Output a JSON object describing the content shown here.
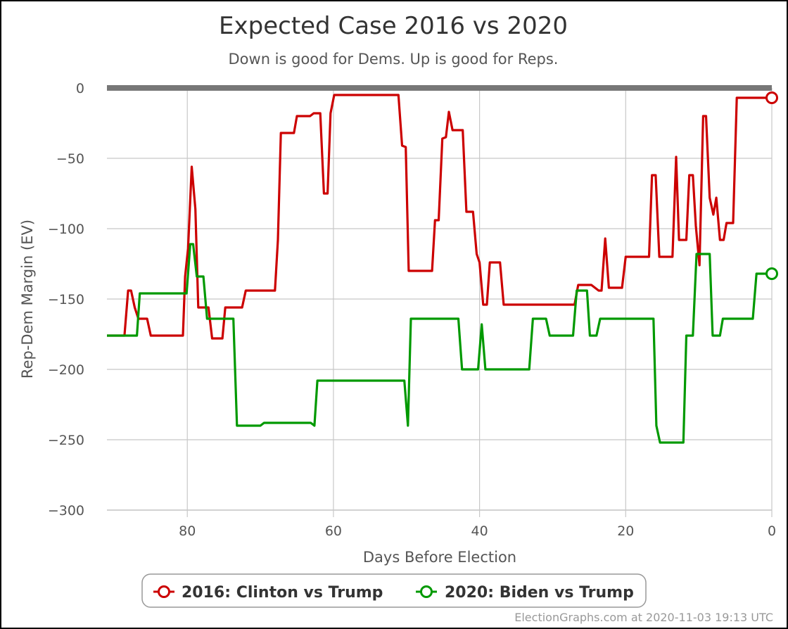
{
  "chart_data": {
    "type": "line",
    "title": "Expected Case 2016 vs 2020",
    "subtitle": "Down is good for Dems. Up is good for Reps.",
    "xlabel": "Days Before Election",
    "ylabel": "Rep-Dem Margin (EV)",
    "xlim": [
      91,
      0
    ],
    "ylim": [
      -300,
      0
    ],
    "x_reversed": true,
    "x_ticks": [
      "80",
      "60",
      "40",
      "20",
      "0"
    ],
    "y_ticks": [
      "0",
      "−50",
      "−100",
      "−150",
      "−200",
      "−250",
      "−300"
    ],
    "grid": true,
    "legend_position": "bottom",
    "credit": "ElectionGraphs.com at 2020-11-03 19:13 UTC",
    "series": [
      {
        "name": "2016: Clinton vs Trump",
        "color": "#cc0000",
        "points": [
          [
            91,
            -176
          ],
          [
            88.6,
            -176
          ],
          [
            88.1,
            -144
          ],
          [
            87.7,
            -144
          ],
          [
            87.2,
            -156
          ],
          [
            86.7,
            -164
          ],
          [
            85.5,
            -164
          ],
          [
            85.0,
            -176
          ],
          [
            80.6,
            -176
          ],
          [
            80.3,
            -134
          ],
          [
            79.9,
            -114
          ],
          [
            79.4,
            -56
          ],
          [
            78.9,
            -86
          ],
          [
            78.5,
            -156
          ],
          [
            77.1,
            -156
          ],
          [
            76.6,
            -178
          ],
          [
            75.2,
            -178
          ],
          [
            74.8,
            -156
          ],
          [
            72.5,
            -156
          ],
          [
            72.0,
            -144
          ],
          [
            68.0,
            -144
          ],
          [
            67.6,
            -108
          ],
          [
            67.2,
            -32
          ],
          [
            65.4,
            -32
          ],
          [
            65.0,
            -20
          ],
          [
            63.2,
            -20
          ],
          [
            62.7,
            -18
          ],
          [
            61.8,
            -18
          ],
          [
            61.3,
            -75
          ],
          [
            60.8,
            -75
          ],
          [
            60.4,
            -18
          ],
          [
            59.9,
            -5
          ],
          [
            51.1,
            -5
          ],
          [
            50.6,
            -41
          ],
          [
            50.1,
            -42
          ],
          [
            49.7,
            -130
          ],
          [
            46.5,
            -130
          ],
          [
            46.1,
            -94
          ],
          [
            45.6,
            -94
          ],
          [
            45.1,
            -36
          ],
          [
            44.6,
            -35
          ],
          [
            44.2,
            -17
          ],
          [
            43.7,
            -30
          ],
          [
            42.3,
            -30
          ],
          [
            41.8,
            -88
          ],
          [
            40.9,
            -88
          ],
          [
            40.4,
            -118
          ],
          [
            40.0,
            -124
          ],
          [
            39.5,
            -154
          ],
          [
            39.0,
            -154
          ],
          [
            38.6,
            -124
          ],
          [
            37.2,
            -124
          ],
          [
            36.7,
            -154
          ],
          [
            27.0,
            -154
          ],
          [
            26.5,
            -140
          ],
          [
            24.7,
            -140
          ],
          [
            24.2,
            -142
          ],
          [
            23.7,
            -144
          ],
          [
            23.3,
            -144
          ],
          [
            22.8,
            -107
          ],
          [
            22.3,
            -142
          ],
          [
            20.5,
            -142
          ],
          [
            20.0,
            -120
          ],
          [
            16.8,
            -120
          ],
          [
            16.4,
            -62
          ],
          [
            15.9,
            -62
          ],
          [
            15.4,
            -120
          ],
          [
            13.6,
            -120
          ],
          [
            13.1,
            -49
          ],
          [
            12.7,
            -108
          ],
          [
            11.7,
            -108
          ],
          [
            11.3,
            -62
          ],
          [
            10.8,
            -62
          ],
          [
            10.4,
            -98
          ],
          [
            9.9,
            -126
          ],
          [
            9.4,
            -20
          ],
          [
            9.0,
            -20
          ],
          [
            8.5,
            -78
          ],
          [
            8.0,
            -90
          ],
          [
            7.6,
            -78
          ],
          [
            7.1,
            -108
          ],
          [
            6.6,
            -108
          ],
          [
            6.2,
            -96
          ],
          [
            5.3,
            -96
          ],
          [
            4.8,
            -7
          ],
          [
            0,
            -7
          ]
        ]
      },
      {
        "name": "2020: Biden vs Trump",
        "color": "#009900",
        "points": [
          [
            91,
            -176
          ],
          [
            86.9,
            -176
          ],
          [
            86.5,
            -146
          ],
          [
            80.1,
            -146
          ],
          [
            79.6,
            -111
          ],
          [
            79.2,
            -111
          ],
          [
            78.7,
            -134
          ],
          [
            77.8,
            -134
          ],
          [
            77.3,
            -164
          ],
          [
            73.7,
            -164
          ],
          [
            73.2,
            -240
          ],
          [
            70.0,
            -240
          ],
          [
            69.5,
            -238
          ],
          [
            63.1,
            -238
          ],
          [
            62.6,
            -240
          ],
          [
            62.2,
            -208
          ],
          [
            51.2,
            -208
          ],
          [
            50.3,
            -208
          ],
          [
            49.8,
            -240
          ],
          [
            49.4,
            -164
          ],
          [
            42.9,
            -164
          ],
          [
            42.4,
            -200
          ],
          [
            40.2,
            -200
          ],
          [
            39.7,
            -168
          ],
          [
            39.2,
            -200
          ],
          [
            33.2,
            -200
          ],
          [
            32.7,
            -164
          ],
          [
            30.9,
            -164
          ],
          [
            30.4,
            -176
          ],
          [
            27.2,
            -176
          ],
          [
            26.7,
            -144
          ],
          [
            25.3,
            -144
          ],
          [
            24.9,
            -176
          ],
          [
            24.0,
            -176
          ],
          [
            23.5,
            -164
          ],
          [
            16.2,
            -164
          ],
          [
            15.8,
            -240
          ],
          [
            15.3,
            -252
          ],
          [
            12.1,
            -252
          ],
          [
            11.7,
            -176
          ],
          [
            10.8,
            -176
          ],
          [
            10.3,
            -118
          ],
          [
            8.5,
            -118
          ],
          [
            8.1,
            -176
          ],
          [
            7.1,
            -176
          ],
          [
            6.7,
            -164
          ],
          [
            2.6,
            -164
          ],
          [
            2.1,
            -132
          ],
          [
            0,
            -132
          ]
        ]
      }
    ]
  }
}
